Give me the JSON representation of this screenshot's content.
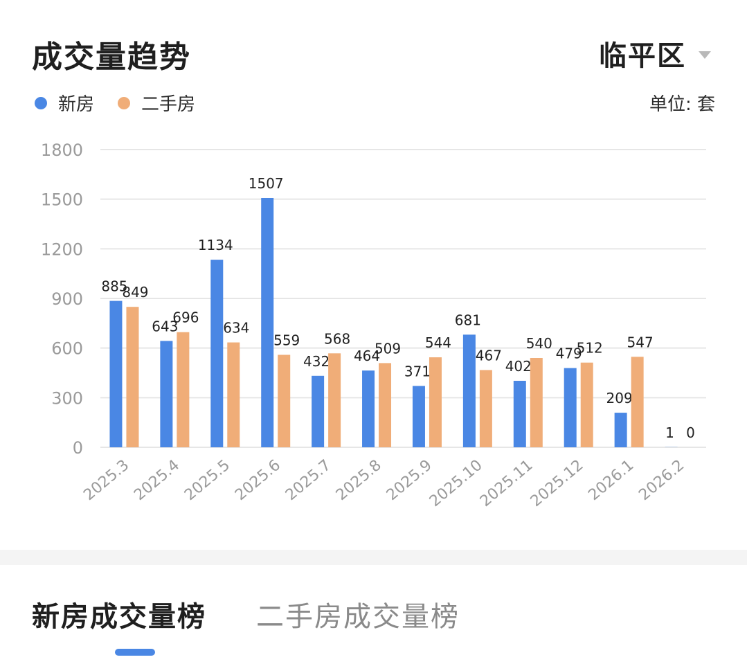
{
  "header": {
    "title": "成交量趋势",
    "district": "临平区"
  },
  "legend": {
    "new_label": "新房",
    "second_label": "二手房",
    "unit": "单位: 套"
  },
  "colors": {
    "new": "#4a87e4",
    "second": "#f0ad78",
    "grid": "#e6e6e6",
    "axis_text": "#9a9a9a"
  },
  "chart_data": {
    "type": "bar",
    "categories": [
      "2025.3",
      "2025.4",
      "2025.5",
      "2025.6",
      "2025.7",
      "2025.8",
      "2025.9",
      "2025.10",
      "2025.11",
      "2025.12",
      "2026.1",
      "2026.2"
    ],
    "series": [
      {
        "name": "新房",
        "values": [
          885,
          643,
          1134,
          1507,
          432,
          464,
          371,
          681,
          402,
          479,
          209,
          1
        ]
      },
      {
        "name": "二手房",
        "values": [
          849,
          696,
          634,
          559,
          568,
          509,
          544,
          467,
          540,
          512,
          547,
          0
        ]
      }
    ],
    "yticks": [
      0,
      300,
      600,
      900,
      1200,
      1500,
      1800
    ],
    "ylim": [
      0,
      1800
    ],
    "unit": "套",
    "grid": true,
    "legend_position": "top-left"
  },
  "tabs": {
    "active": "新房成交量榜",
    "inactive": "二手房成交量榜"
  }
}
